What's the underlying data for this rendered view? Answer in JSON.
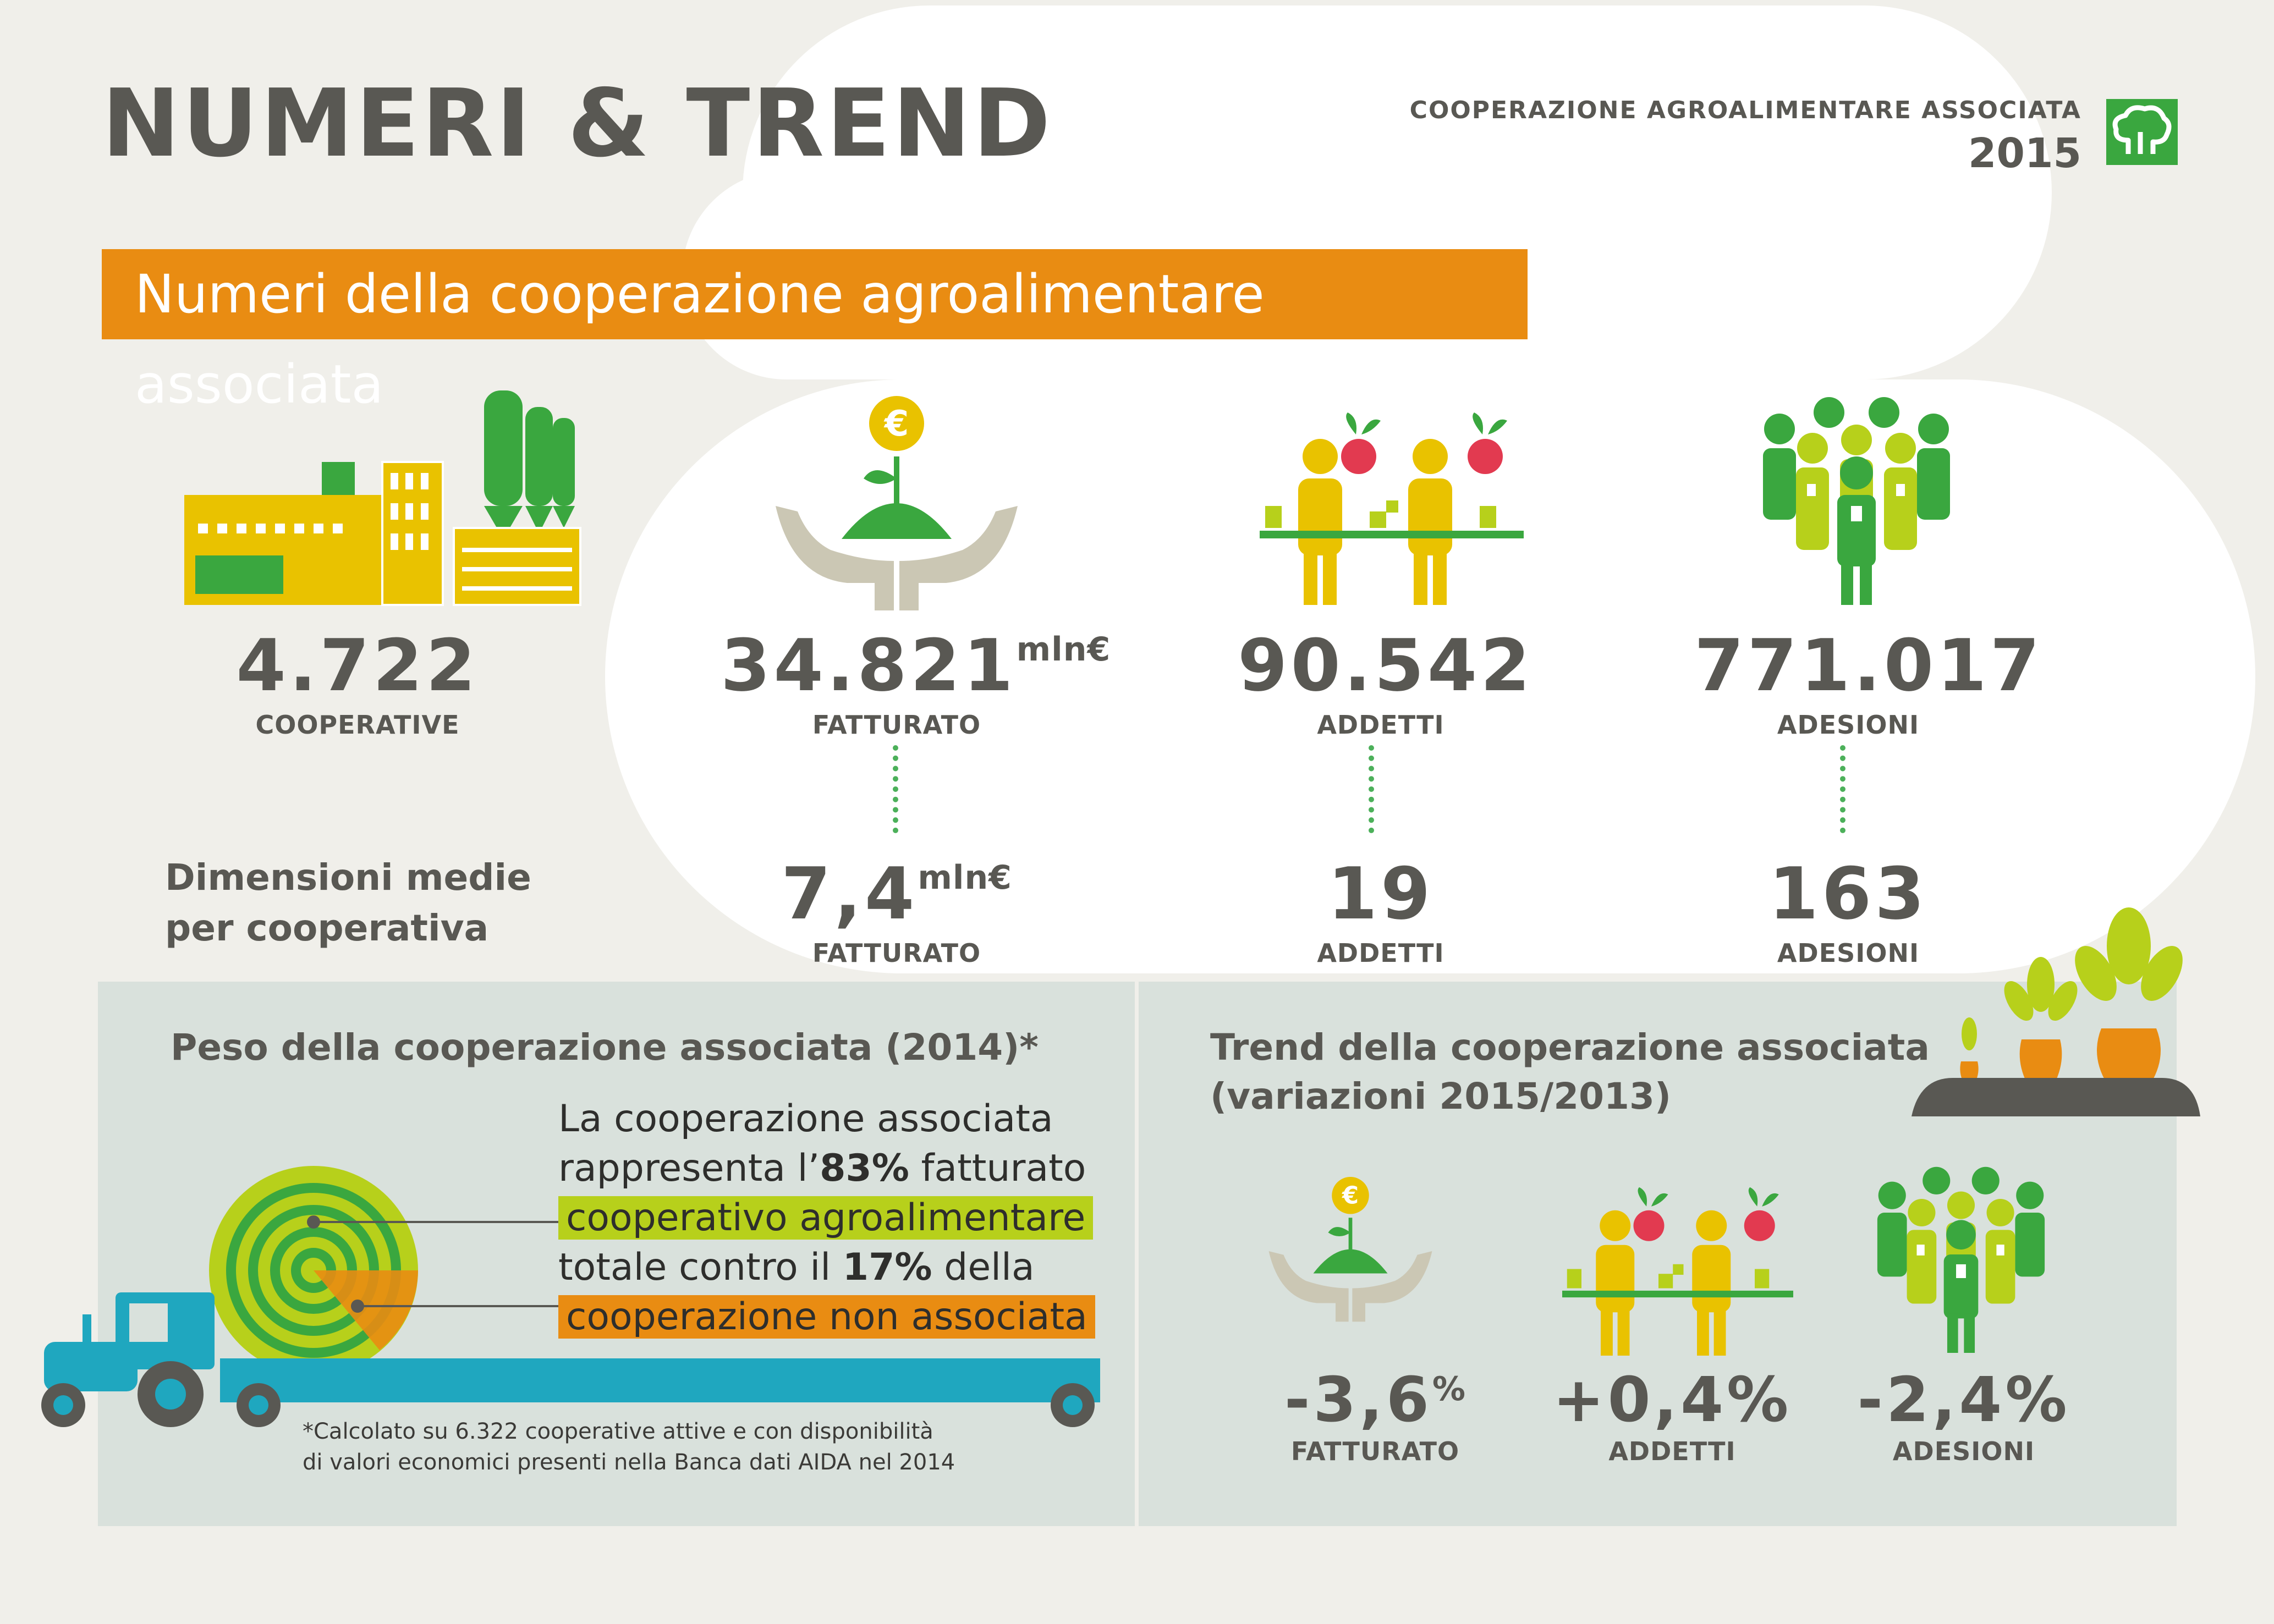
{
  "header": {
    "title": "NUMERI & TREND",
    "organization": "COOPERAZIONE AGROALIMENTARE ASSOCIATA",
    "year": "2015",
    "logo_icon": "tree-logo-icon"
  },
  "banner": {
    "text": "Numeri della cooperazione agroalimentare associata"
  },
  "totals": [
    {
      "value": "4.722",
      "unit": "",
      "label": "COOPERATIVE",
      "icon": "factory-icon"
    },
    {
      "value": "34.821",
      "unit": "mln€",
      "label": "FATTURATO",
      "icon": "hands-plant-euro-icon"
    },
    {
      "value": "90.542",
      "unit": "",
      "label": "ADDETTI",
      "icon": "workers-icon"
    },
    {
      "value": "771.017",
      "unit": "",
      "label": "ADESIONI",
      "icon": "members-group-icon"
    }
  ],
  "averages": {
    "heading_line1": "Dimensioni medie",
    "heading_line2": "per cooperativa",
    "items": [
      {
        "value": "7,4",
        "unit": "mln€",
        "label": "FATTURATO"
      },
      {
        "value": "19",
        "unit": "",
        "label": "ADDETTI"
      },
      {
        "value": "163",
        "unit": "",
        "label": "ADESIONI"
      }
    ]
  },
  "weight_panel": {
    "title": "Peso della cooperazione associata (2014)*",
    "text_line1": "La cooperazione associata",
    "text_line2_a": "rappresenta l’",
    "text_line2_b": "83%",
    "text_line2_c": " fatturato",
    "text_line3": "cooperativo agroalimentare",
    "text_line4_a": "totale contro il ",
    "text_line4_b": "17%",
    "text_line4_c": " della",
    "text_line5": "cooperazione non associata",
    "share_associated_pct": 83,
    "share_not_associated_pct": 17,
    "note_line1": "*Calcolato su 6.322 cooperative attive e con disponibilità",
    "note_line2": "di valori economici presenti nella Banca dati AIDA nel 2014",
    "illustration_icon": "tractor-hay-bale-icon"
  },
  "trend_panel": {
    "title_line1": "Trend della cooperazione associata",
    "title_line2": "(variazioni 2015/2013)",
    "items": [
      {
        "value": "-3,6",
        "unit": "%",
        "label": "FATTURATO",
        "icon": "hands-plant-euro-icon"
      },
      {
        "value": "+0,4%",
        "unit": "",
        "label": "ADDETTI",
        "icon": "workers-icon"
      },
      {
        "value": "-2,4%",
        "unit": "",
        "label": "ADESIONI",
        "icon": "members-group-icon"
      }
    ],
    "decoration_icon": "carrots-icon"
  },
  "colors": {
    "orange": "#e98c12",
    "yellow": "#e9c200",
    "green": "#3aa73f",
    "lime": "#b7d01b",
    "teal": "#1fa7bf",
    "text": "#595853",
    "panel": "#d9e1dc"
  }
}
